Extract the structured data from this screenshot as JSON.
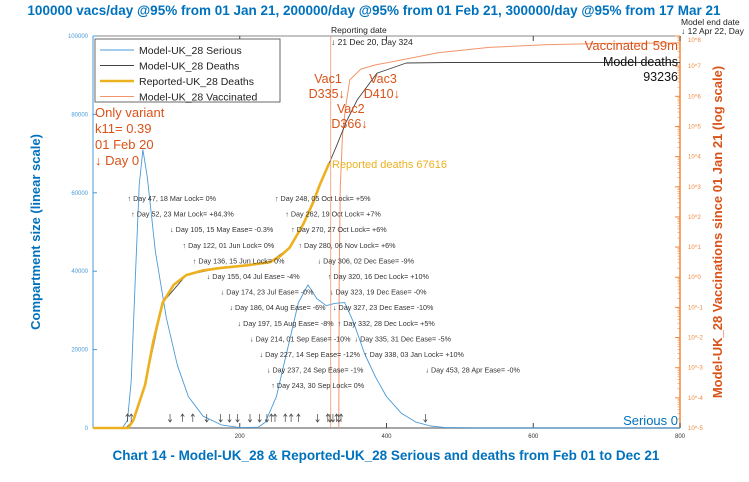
{
  "chart_data": {
    "type": "line",
    "title": "100000 vacs/day @95% from 01 Jan 21, 200000/day @95% from 01 Feb 21, 300000/day @95% from 17 Mar 21",
    "subtitle": "Chart 14 - Model-UK_28 & Reported-UK_28 Serious and deaths from Feb 01 to Dec 21",
    "ylabel": "Compartment size (linear scale)",
    "y2label": "Model-UK_28 Vaccinations since 01 Jan 21 (log scale)",
    "xlim": [
      0,
      800
    ],
    "ylim": [
      0,
      100000
    ],
    "y2lim": [
      1e-05,
      100000000.0
    ],
    "y2scale": "log",
    "grid": false,
    "legend_position": "top-left",
    "x_ticks": [
      "200",
      "400",
      "600",
      "800"
    ],
    "y_ticks": [
      "0",
      "20000",
      "40000",
      "60000",
      "80000",
      "100000"
    ],
    "y2_ticks": [
      "10^-5",
      "10^-4",
      "10^-3",
      "10^-2",
      "10^-1",
      "10^0",
      "10^1",
      "10^2",
      "10^3",
      "10^4",
      "10^5",
      "10^6",
      "10^7",
      "10^8"
    ],
    "series": [
      {
        "name": "Model-UK_28 Serious",
        "color": "#4a9ad8",
        "axis": "left",
        "points": [
          [
            0,
            0
          ],
          [
            40,
            0
          ],
          [
            47,
            2000
          ],
          [
            52,
            12000
          ],
          [
            58,
            40000
          ],
          [
            63,
            62000
          ],
          [
            68,
            71000
          ],
          [
            74,
            64000
          ],
          [
            85,
            45000
          ],
          [
            100,
            28000
          ],
          [
            115,
            16000
          ],
          [
            130,
            8000
          ],
          [
            150,
            3000
          ],
          [
            175,
            800
          ],
          [
            200,
            100
          ],
          [
            225,
            200
          ],
          [
            235,
            1500
          ],
          [
            250,
            8000
          ],
          [
            265,
            20000
          ],
          [
            280,
            32000
          ],
          [
            293,
            36500
          ],
          [
            305,
            33000
          ],
          [
            318,
            31200
          ],
          [
            330,
            31800
          ],
          [
            343,
            32000
          ],
          [
            355,
            27000
          ],
          [
            370,
            19000
          ],
          [
            385,
            13000
          ],
          [
            400,
            8000
          ],
          [
            420,
            3800
          ],
          [
            440,
            1500
          ],
          [
            460,
            500
          ],
          [
            480,
            100
          ],
          [
            520,
            0
          ],
          [
            800,
            0
          ]
        ]
      },
      {
        "name": "Model-UK_28 Deaths",
        "color": "#444444",
        "axis": "left",
        "points": [
          [
            0,
            0
          ],
          [
            45,
            0
          ],
          [
            55,
            2000
          ],
          [
            71,
            11000
          ],
          [
            95,
            32000
          ],
          [
            127,
            39000
          ],
          [
            173,
            40800
          ],
          [
            241,
            42300
          ],
          [
            268,
            46000
          ],
          [
            286,
            51800
          ],
          [
            309,
            62000
          ],
          [
            322,
            67600
          ],
          [
            332,
            72000
          ],
          [
            345,
            78000
          ],
          [
            360,
            83700
          ],
          [
            387,
            90500
          ],
          [
            427,
            93100
          ],
          [
            480,
            93236
          ],
          [
            800,
            93236
          ]
        ]
      },
      {
        "name": "Reported-UK_28 Deaths",
        "color": "#edb120",
        "axis": "left",
        "points": [
          [
            0,
            0
          ],
          [
            48,
            0
          ],
          [
            55,
            2000
          ],
          [
            71,
            11000
          ],
          [
            82,
            22000
          ],
          [
            95,
            32000
          ],
          [
            110,
            36500
          ],
          [
            127,
            39000
          ],
          [
            150,
            40200
          ],
          [
            173,
            40800
          ],
          [
            210,
            41500
          ],
          [
            241,
            42300
          ],
          [
            255,
            43800
          ],
          [
            268,
            46000
          ],
          [
            286,
            51800
          ],
          [
            300,
            57500
          ],
          [
            309,
            62000
          ],
          [
            322,
            67616
          ]
        ]
      },
      {
        "name": "Model-UK_28 Vaccinated",
        "color": "#f2956a",
        "axis": "right",
        "points": [
          [
            335,
            1e-05
          ],
          [
            335.5,
            1
          ],
          [
            337,
            1000
          ],
          [
            340,
            50000
          ],
          [
            344,
            400000
          ],
          [
            350,
            3500000
          ],
          [
            365,
            8000000
          ],
          [
            385,
            11000000
          ],
          [
            420,
            16000000
          ],
          [
            470,
            28000000
          ],
          [
            540,
            42000000
          ],
          [
            620,
            52000000
          ],
          [
            700,
            57000000
          ],
          [
            800,
            59000000
          ]
        ]
      }
    ],
    "annotations": {
      "variant": [
        "Only variant",
        "k11= 0.39",
        "01 Feb 20",
        "↓ Day 0"
      ],
      "reported_deaths": "Reported deaths 67616",
      "model_deaths": [
        "Model deaths",
        "93236"
      ],
      "vaccinated": [
        "Vaccinated",
        "59m"
      ],
      "serious_end": "Serious 0",
      "reporting_date": [
        "Reporting date",
        "↓ 21 Dec 20, Day 324"
      ],
      "model_end_date": [
        "Model end date",
        "↓ 12 Apr 22, Day"
      ],
      "vaccine_doses": [
        {
          "label": "Vac1",
          "day_label": "D335↓",
          "day": 335
        },
        {
          "label": "Vac2",
          "day_label": "D366↓",
          "day": 366
        },
        {
          "label": "Vac3",
          "day_label": "D410↓",
          "day": 410
        }
      ],
      "interventions": [
        {
          "day": 47,
          "dir": "up",
          "text": "↑ Day 47, 18 Mar Lock= 0%"
        },
        {
          "day": 52,
          "dir": "up",
          "text": "↑ Day 52, 23 Mar Lock= +84.3%"
        },
        {
          "day": 105,
          "dir": "down",
          "text": "↓ Day 105, 15 May Ease= -0.3%"
        },
        {
          "day": 122,
          "dir": "up",
          "text": "↑ Day 122, 01 Jun Lock= 0%"
        },
        {
          "day": 136,
          "dir": "up",
          "text": "↑ Day 136, 15 Jun Lock= 0%"
        },
        {
          "day": 155,
          "dir": "down",
          "text": "↓ Day 155, 04 Jul Ease= -4%"
        },
        {
          "day": 174,
          "dir": "down",
          "text": "↓ Day 174, 23 Jul Ease= -0%"
        },
        {
          "day": 186,
          "dir": "down",
          "text": "↓ Day 186, 04 Aug Ease= -6%"
        },
        {
          "day": 197,
          "dir": "down",
          "text": "↓ Day 197, 15 Aug Ease= -8%"
        },
        {
          "day": 214,
          "dir": "down",
          "text": "↓ Day 214, 01 Sep Ease= -10%"
        },
        {
          "day": 227,
          "dir": "down",
          "text": "↓ Day 227, 14 Sep Ease= -12%"
        },
        {
          "day": 237,
          "dir": "down",
          "text": "↓ Day 237, 24 Sep Ease= -1%"
        },
        {
          "day": 243,
          "dir": "up",
          "text": "↑ Day 243, 30 Sep Lock= 0%"
        },
        {
          "day": 248,
          "dir": "up",
          "text": "↑ Day 248, 05 Oct Lock= +5%"
        },
        {
          "day": 262,
          "dir": "up",
          "text": "↑ Day 262, 19 Oct Lock= +7%"
        },
        {
          "day": 270,
          "dir": "up",
          "text": "↑ Day 270, 27 Oct Lock= +6%"
        },
        {
          "day": 280,
          "dir": "up",
          "text": "↑ Day 280, 06 Nov Lock= +6%"
        },
        {
          "day": 306,
          "dir": "down",
          "text": "↓ Day 306, 02 Dec Ease= -9%"
        },
        {
          "day": 320,
          "dir": "up",
          "text": "↑ Day 320, 16 Dec Lock= +10%"
        },
        {
          "day": 323,
          "dir": "down",
          "text": "↓ Day 323, 19 Dec Ease= -0%"
        },
        {
          "day": 327,
          "dir": "down",
          "text": "↓ Day 327, 23 Dec Ease= -10%"
        },
        {
          "day": 332,
          "dir": "up",
          "text": "↑ Day 332, 28 Dec Lock= +5%"
        },
        {
          "day": 335,
          "dir": "down",
          "text": "↓ Day 335, 31 Dec Ease= -5%"
        },
        {
          "day": 338,
          "dir": "up",
          "text": "↑ Day 338, 03 Jan Lock= +10%"
        },
        {
          "day": 453,
          "dir": "down",
          "text": "↓ Day 453, 28 Apr Ease= -0%"
        }
      ]
    }
  },
  "colors": {
    "title": "#0072bd",
    "annotation": "#d95319",
    "axis_left": "#4a9ad8",
    "axis_right": "#f0883e",
    "reported": "#edb120"
  }
}
